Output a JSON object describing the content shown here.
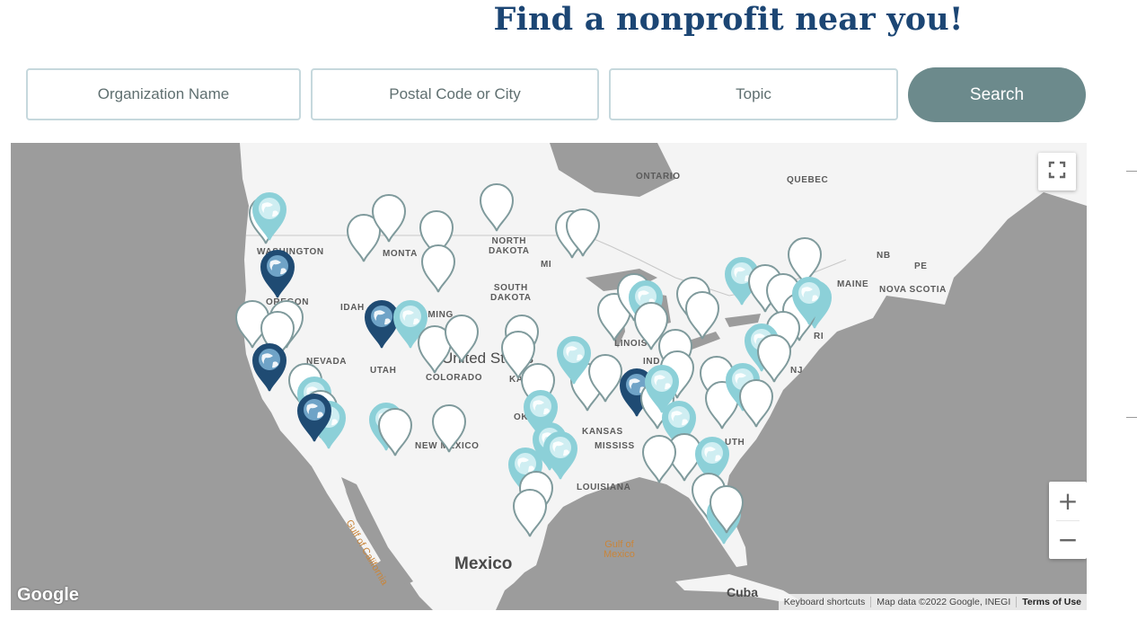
{
  "page": {
    "title": "Find a nonprofit near you!"
  },
  "search": {
    "organization_placeholder": "Organization Name",
    "location_placeholder": "Postal Code or City",
    "topic_placeholder": "Topic",
    "button_label": "Search"
  },
  "colors": {
    "title": "#1c4674",
    "button": "#6c8a8c",
    "pin_white": "#ffffff",
    "pin_light": "#8cd0d8",
    "pin_dark": "#1f4b73",
    "land": "#f4f4f4",
    "water": "#9c9c9c"
  },
  "map": {
    "labels": {
      "ontario": "ONTARIO",
      "quebec": "QUEBEC",
      "washington": "WASHINGTON",
      "montana": "MONTA",
      "north_dakota": "NORTH\nDAKOTA",
      "minnesota": "MI",
      "south_dakota": "SOUTH\nDAKOTA",
      "oregon": "OREGON",
      "idaho": "IDAH",
      "wyoming": "OMING",
      "nevada": "NEVADA",
      "utah": "UTAH",
      "colorado": "COLORADO",
      "united_states": "United States",
      "kansas_short": "KA",
      "illinois": "LINOIS",
      "indiana": "IND",
      "oklahoma": "OK",
      "arkansas": "KANSAS",
      "mississippi": "MISSISS",
      "new_mexico": "NEW MEXICO",
      "louisiana": "LOUISIANA",
      "south_carolina": "UTH",
      "nb": "NB",
      "pe": "PE",
      "maine": "MAINE",
      "nova_scotia": "NOVA SCOTIA",
      "nj": "NJ",
      "mo": "RI",
      "gulf_of_california": "Gulf of California",
      "gulf_of_mexico": "Gulf of\nMexico",
      "mexico": "Mexico",
      "cuba": "Cuba"
    },
    "google_logo": "Google",
    "attribution": {
      "shortcuts": "Keyboard shortcuts",
      "map_data": "Map data ©2022 Google, INEGI",
      "terms": "Terms of Use"
    },
    "controls": {
      "fullscreen": "fullscreen-icon",
      "zoom_in": "+",
      "zoom_out": "−"
    },
    "marker_types": [
      "white",
      "light",
      "dark"
    ]
  }
}
